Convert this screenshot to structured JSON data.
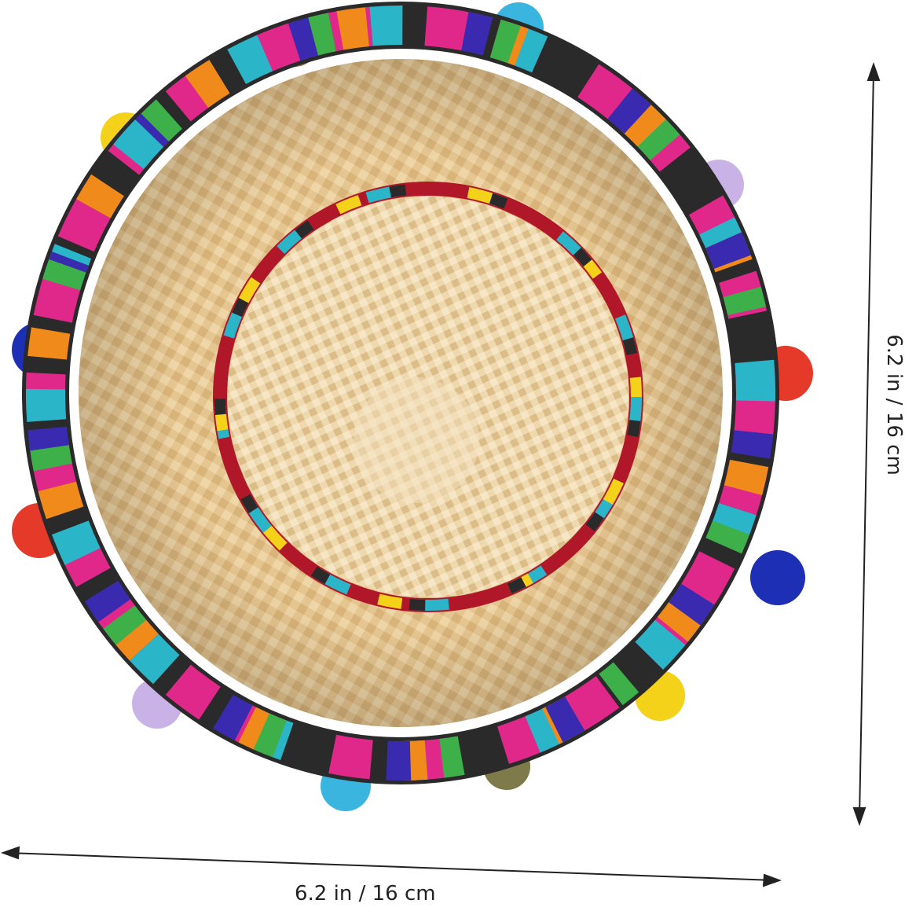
{
  "product": "straw sombrero hat with colorful serape trim and pompoms",
  "dimensions": {
    "width_label": "6.2 in / 16 cm",
    "height_label": "6.2 in / 16 cm"
  },
  "colors": {
    "straw": "#e8c894",
    "straw_light": "#f1dcb4",
    "pompoms": [
      "#2b8fd6",
      "#e53a2a",
      "#f5d21a",
      "#1c2fb5",
      "#c9b3e6",
      "#7e7a4a",
      "#39b5e0"
    ]
  }
}
